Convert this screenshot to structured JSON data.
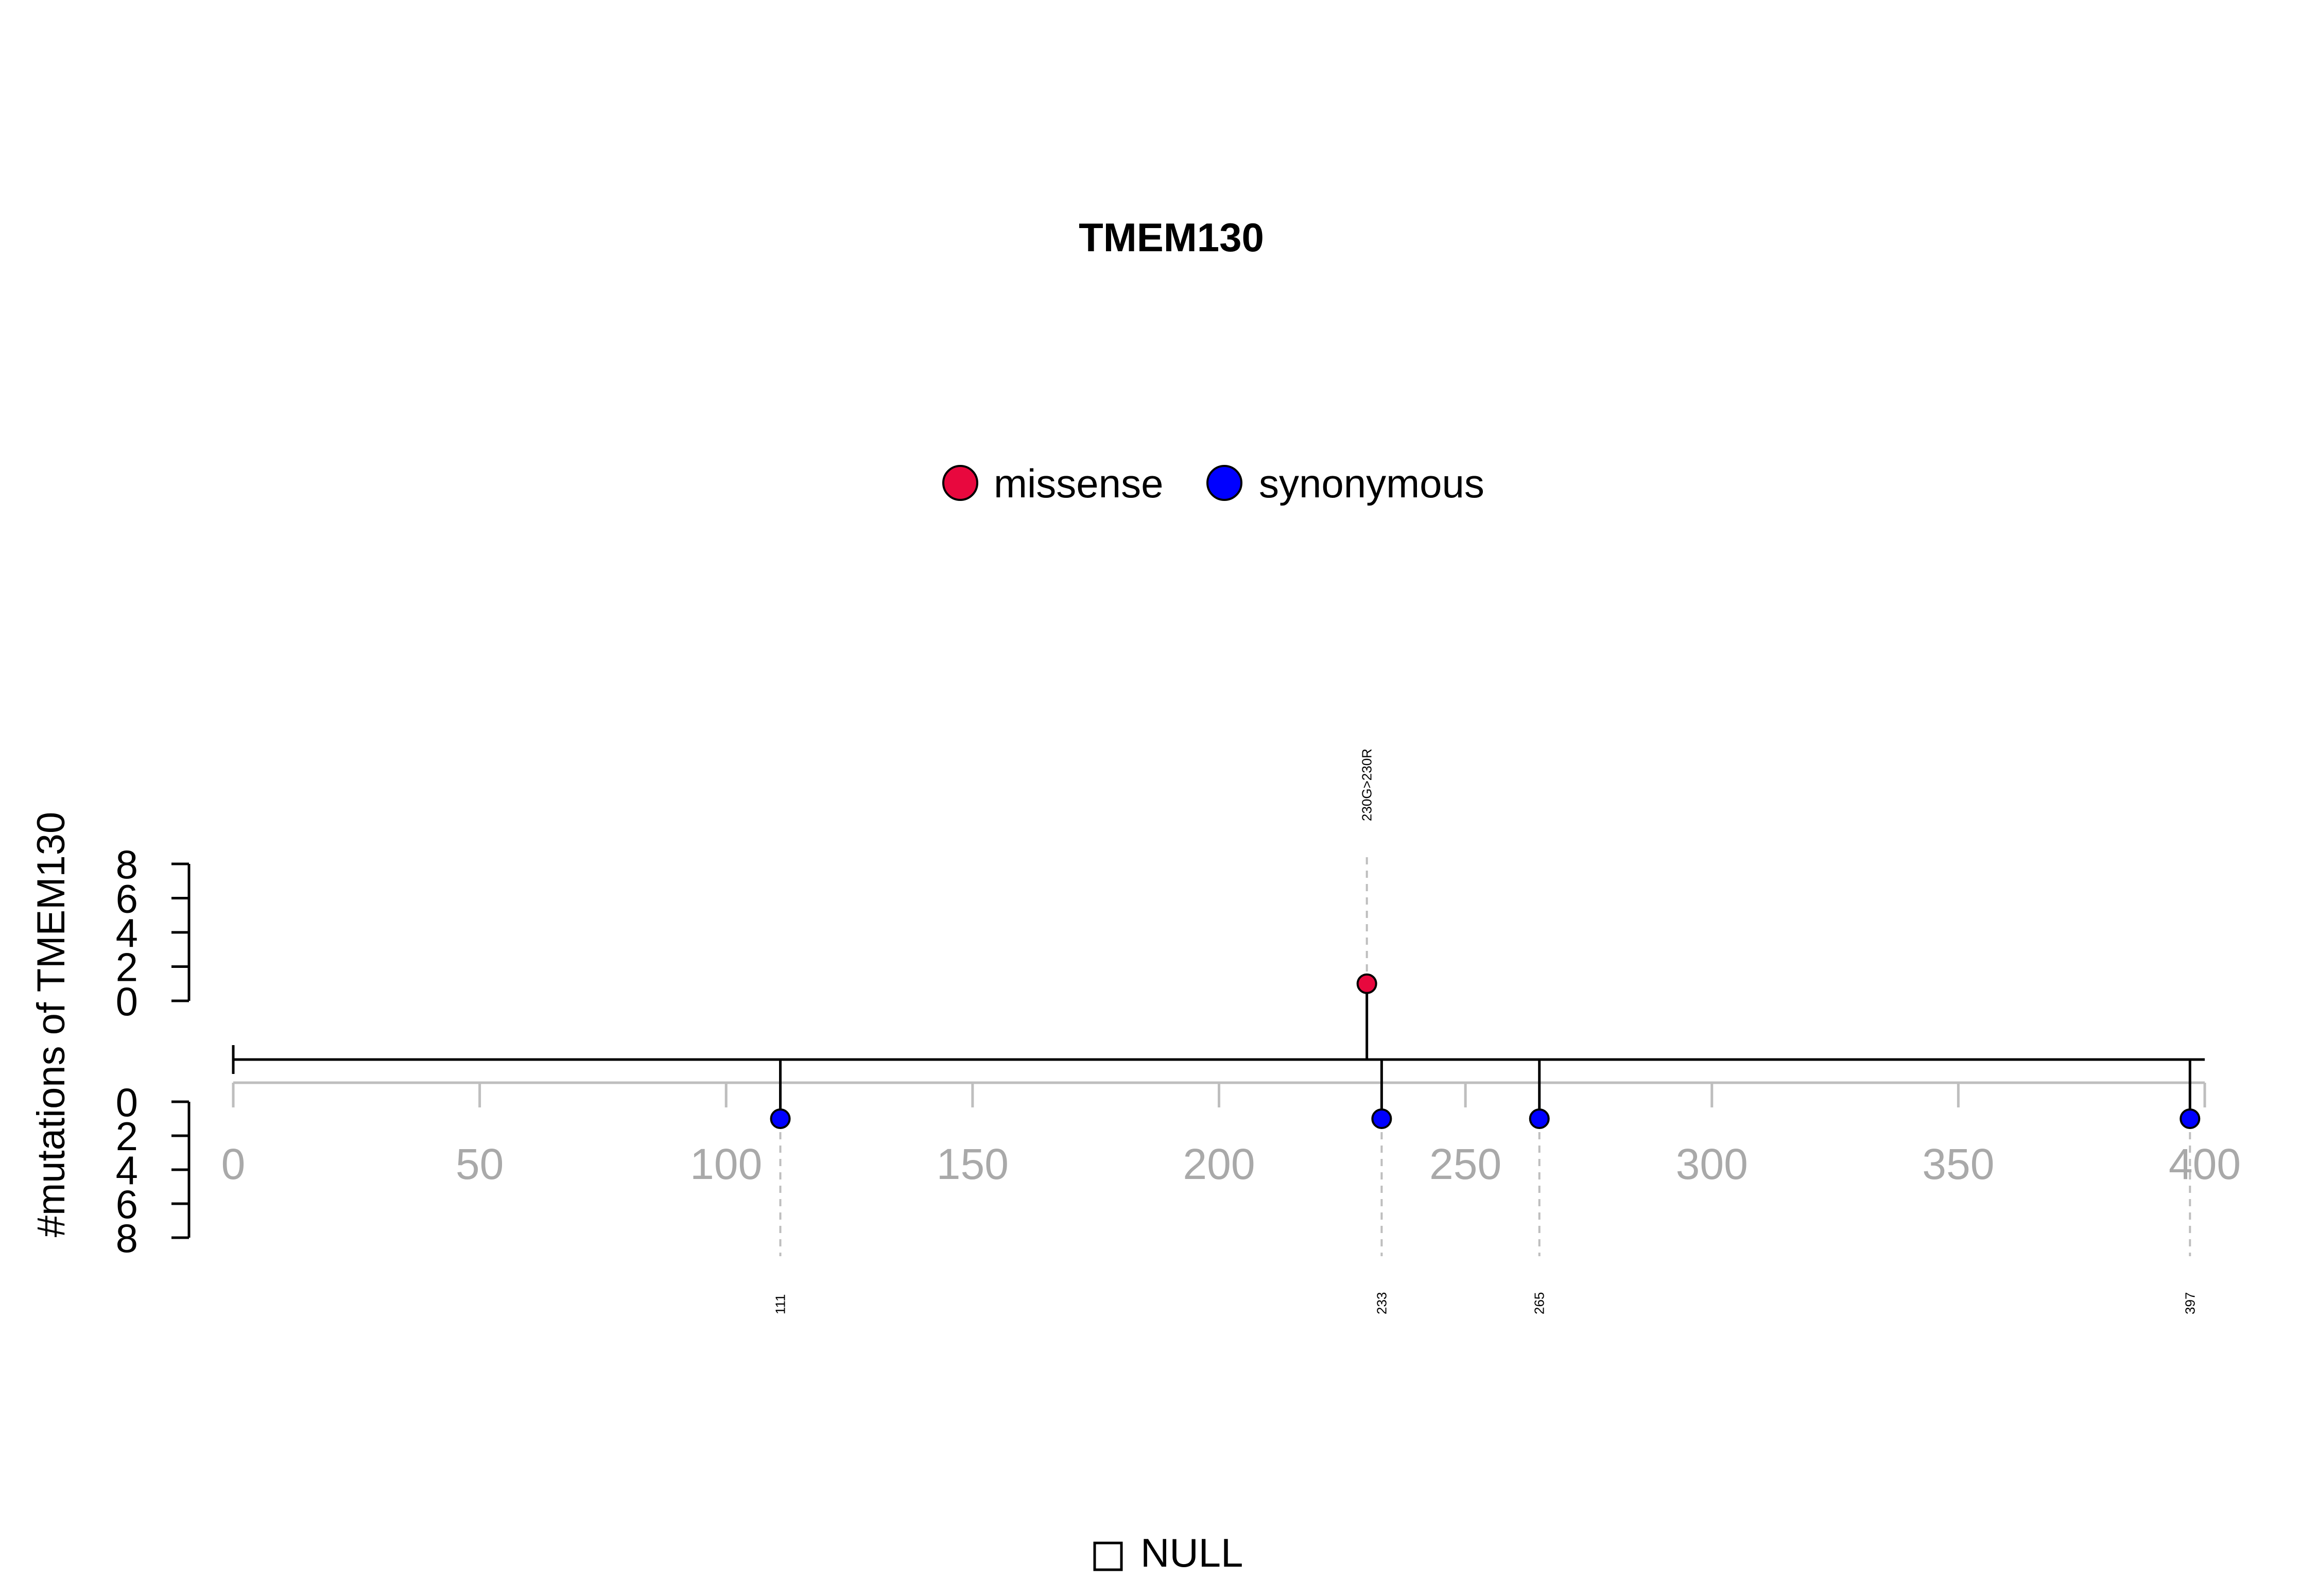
{
  "chart_data": {
    "type": "lollipop",
    "title": "TMEM130",
    "ylabel": "#mutations of TMEM130",
    "xlim": [
      0,
      400
    ],
    "x_ticks": [
      "0",
      "50",
      "100",
      "150",
      "200",
      "250",
      "300",
      "350",
      "400"
    ],
    "y_ticks_upper": [
      "0",
      "2",
      "4",
      "6",
      "8"
    ],
    "y_ticks_lower": [
      "0",
      "2",
      "4",
      "6",
      "8"
    ],
    "ylim": [
      0,
      8
    ],
    "legend": {
      "placement": "top-center",
      "entries": [
        {
          "label": "missense",
          "color": "#E8083E"
        },
        {
          "label": "synonymous",
          "color": "#0000FF"
        }
      ]
    },
    "mutations": [
      {
        "position": 230,
        "count": 1,
        "side": "top",
        "type": "missense",
        "label": "230G>230R"
      },
      {
        "position": 111,
        "count": 1,
        "side": "bottom",
        "type": "synonymous",
        "label": "111"
      },
      {
        "position": 233,
        "count": 1,
        "side": "bottom",
        "type": "synonymous",
        "label": "233"
      },
      {
        "position": 265,
        "count": 1,
        "side": "bottom",
        "type": "synonymous",
        "label": "265"
      },
      {
        "position": 397,
        "count": 1,
        "side": "bottom",
        "type": "synonymous",
        "label": "397"
      }
    ],
    "domain_legend": {
      "label": "NULL"
    },
    "colors": {
      "axis_gray": "#BEBEBE",
      "tick_label_gray": "#A9A9A9",
      "line": "#000000"
    }
  }
}
